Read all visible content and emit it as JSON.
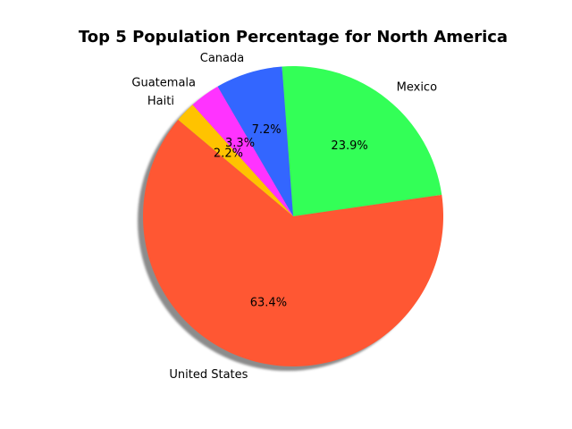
{
  "chart_data": {
    "type": "pie",
    "title": "Top 5 Population Percentage for North America",
    "labels": [
      "United States",
      "Mexico",
      "Canada",
      "Guatemala",
      "Haiti"
    ],
    "values": [
      63.4,
      23.9,
      7.2,
      3.3,
      2.2
    ],
    "pct_labels": [
      "63.4%",
      "23.9%",
      "7.2%",
      "3.3%",
      "2.2%"
    ],
    "colors": [
      "#ff5733",
      "#33ff57",
      "#3366ff",
      "#ff33ff",
      "#ffc300"
    ],
    "start_angle_deg": 140,
    "shadow": true
  }
}
